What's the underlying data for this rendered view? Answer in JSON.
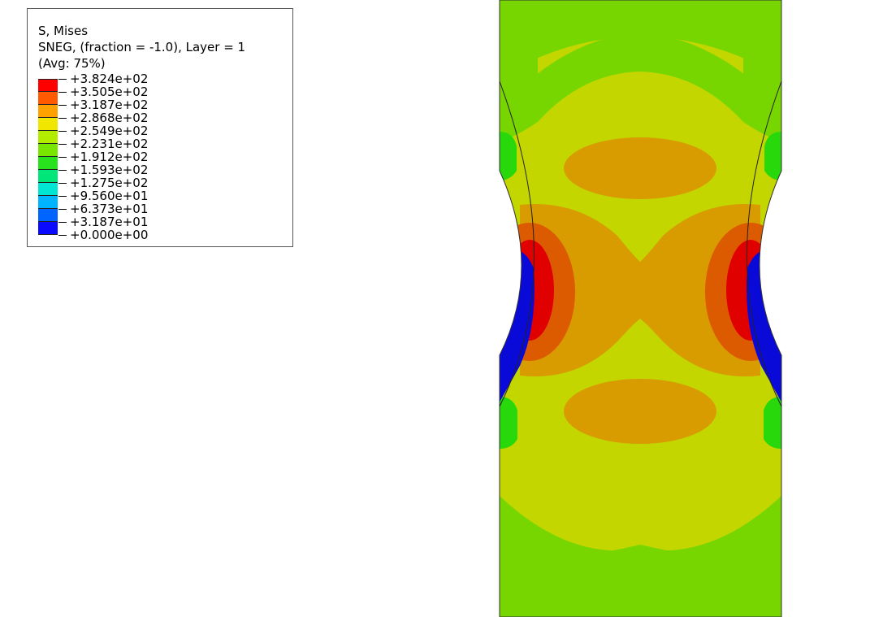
{
  "legend": {
    "title": "S, Mises",
    "subtitle": "SNEG, (fraction = -1.0), Layer = 1",
    "averaging": "(Avg: 75%)",
    "levels": [
      {
        "label": "+3.824e+02",
        "color": "#ff0000"
      },
      {
        "label": "+3.505e+02",
        "color": "#ff5a00"
      },
      {
        "label": "+3.187e+02",
        "color": "#ffa200"
      },
      {
        "label": "+2.868e+02",
        "color": "#f0e600"
      },
      {
        "label": "+2.549e+02",
        "color": "#b4ec00"
      },
      {
        "label": "+2.231e+02",
        "color": "#78e600"
      },
      {
        "label": "+1.912e+02",
        "color": "#28e21e"
      },
      {
        "label": "+1.593e+02",
        "color": "#00e678"
      },
      {
        "label": "+1.275e+02",
        "color": "#00e6d2"
      },
      {
        "label": "+9.560e+01",
        "color": "#00b4ff"
      },
      {
        "label": "+6.373e+01",
        "color": "#0064ff"
      },
      {
        "label": "+3.187e+01",
        "color": "#0a0aff"
      },
      {
        "label": "+0.000e+00",
        "color": null
      }
    ]
  },
  "contour_colors": {
    "field_green": "#78d600",
    "yellow_green": "#c3d600",
    "orange": "#d89b00",
    "dark_orange": "#dc5a00",
    "red": "#e00000",
    "bright_green": "#28d80a",
    "blue": "#0a0ad8"
  }
}
